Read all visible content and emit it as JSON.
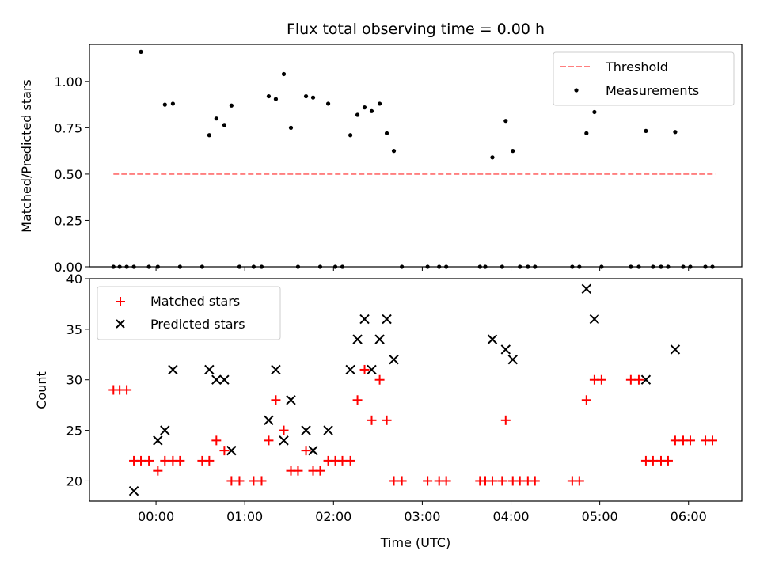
{
  "chart_data": [
    {
      "type": "scatter",
      "title": "Flux total observing time = 0.00 h",
      "xlabel": "",
      "ylabel": "Matched/Predicted stars",
      "ylim": [
        0,
        1.2
      ],
      "xlim": [
        -0.75,
        6.6
      ],
      "yticks": [
        "0.00",
        "0.25",
        "0.50",
        "0.75",
        "1.00"
      ],
      "grid": false,
      "legend": "top-right",
      "threshold": {
        "name": "Threshold",
        "value": 0.5,
        "x_range": [
          -0.48,
          6.3
        ],
        "color": "#ff7f7f"
      },
      "measurements": {
        "name": "Measurements",
        "color": "#000000",
        "x": [
          -0.48,
          -0.41,
          -0.33,
          -0.25,
          -0.17,
          -0.08,
          0.02,
          0.1,
          0.19,
          0.27,
          0.52,
          0.6,
          0.68,
          0.77,
          0.85,
          0.94,
          1.1,
          1.19,
          1.27,
          1.35,
          1.44,
          1.52,
          1.6,
          1.69,
          1.77,
          1.85,
          1.94,
          2.02,
          2.1,
          2.19,
          2.27,
          2.35,
          2.43,
          2.52,
          2.6,
          2.68,
          2.77,
          3.06,
          3.19,
          3.27,
          3.65,
          3.71,
          3.79,
          3.9,
          3.94,
          4.02,
          4.1,
          4.19,
          4.27,
          4.69,
          4.77,
          4.85,
          4.94,
          5.02,
          5.35,
          5.44,
          5.52,
          5.6,
          5.69,
          5.77,
          5.85,
          5.94,
          6.02,
          6.19,
          6.27
        ],
        "y": [
          0,
          0,
          0,
          0,
          1.16,
          0,
          0,
          0.875,
          0.88,
          0,
          0,
          0.71,
          0.8,
          0.765,
          0.87,
          0,
          0,
          0,
          0.92,
          0.905,
          1.04,
          0.75,
          0,
          0.92,
          0.913,
          0,
          0.88,
          0,
          0,
          0.71,
          0.82,
          0.86,
          0.84,
          0.88,
          0.72,
          0.625,
          0,
          0,
          0,
          0,
          0,
          0,
          0.59,
          0,
          0.787,
          0.625,
          0,
          0,
          0,
          0,
          0,
          0.72,
          0.835,
          0,
          0,
          0,
          0.733,
          0,
          0,
          0,
          0.727,
          0,
          0,
          0,
          0
        ]
      },
      "legend_entries": [
        "Threshold",
        "Measurements"
      ]
    },
    {
      "type": "scatter",
      "title": "",
      "xlabel": "Time (UTC)",
      "ylabel": "Count",
      "ylim": [
        18,
        40
      ],
      "xlim": [
        -0.75,
        6.6
      ],
      "yticks": [
        "20",
        "25",
        "30",
        "35",
        "40"
      ],
      "xticks": [
        {
          "value": 0,
          "label": "00:00"
        },
        {
          "value": 1,
          "label": "01:00"
        },
        {
          "value": 2,
          "label": "02:00"
        },
        {
          "value": 3,
          "label": "03:00"
        },
        {
          "value": 4,
          "label": "04:00"
        },
        {
          "value": 5,
          "label": "05:00"
        },
        {
          "value": 6,
          "label": "06:00"
        }
      ],
      "grid": false,
      "legend": "top-left",
      "series": [
        {
          "name": "Matched stars",
          "marker": "+",
          "color": "#ff0000",
          "x": [
            -0.48,
            -0.41,
            -0.33,
            -0.25,
            -0.17,
            -0.08,
            0.02,
            0.1,
            0.19,
            0.27,
            0.52,
            0.6,
            0.68,
            0.77,
            0.85,
            0.94,
            1.1,
            1.19,
            1.27,
            1.35,
            1.44,
            1.52,
            1.6,
            1.69,
            1.77,
            1.85,
            1.94,
            2.02,
            2.1,
            2.19,
            2.27,
            2.35,
            2.43,
            2.52,
            2.6,
            2.68,
            2.77,
            3.06,
            3.19,
            3.27,
            3.65,
            3.71,
            3.79,
            3.9,
            3.94,
            4.02,
            4.1,
            4.19,
            4.27,
            4.69,
            4.77,
            4.85,
            4.94,
            5.02,
            5.35,
            5.44,
            5.52,
            5.6,
            5.69,
            5.77,
            5.85,
            5.94,
            6.02,
            6.19,
            6.27
          ],
          "y": [
            29,
            29,
            29,
            22,
            22,
            22,
            21,
            22,
            22,
            22,
            22,
            22,
            24,
            23,
            20,
            20,
            20,
            20,
            24,
            28,
            25,
            21,
            21,
            23,
            21,
            21,
            22,
            22,
            22,
            22,
            28,
            31,
            26,
            30,
            26,
            20,
            20,
            20,
            20,
            20,
            20,
            20,
            20,
            20,
            26,
            20,
            20,
            20,
            20,
            20,
            20,
            28,
            30,
            30,
            30,
            30,
            22,
            22,
            22,
            22,
            24,
            24,
            24,
            24,
            24
          ]
        },
        {
          "name": "Predicted stars",
          "marker": "x",
          "color": "#000000",
          "x": [
            -0.25,
            0.02,
            0.1,
            0.19,
            0.6,
            0.68,
            0.77,
            0.85,
            1.27,
            1.35,
            1.44,
            1.52,
            1.69,
            1.77,
            1.94,
            2.19,
            2.27,
            2.35,
            2.43,
            2.52,
            2.6,
            2.68,
            3.79,
            3.94,
            4.02,
            4.85,
            4.94,
            5.52,
            5.85
          ],
          "y": [
            19,
            24,
            25,
            31,
            31,
            30,
            30,
            23,
            26,
            31,
            24,
            28,
            25,
            23,
            25,
            31,
            34,
            36,
            31,
            34,
            36,
            32,
            34,
            33,
            32,
            39,
            36,
            30,
            33
          ]
        }
      ],
      "legend_entries": [
        "Matched stars",
        "Predicted stars"
      ]
    }
  ]
}
